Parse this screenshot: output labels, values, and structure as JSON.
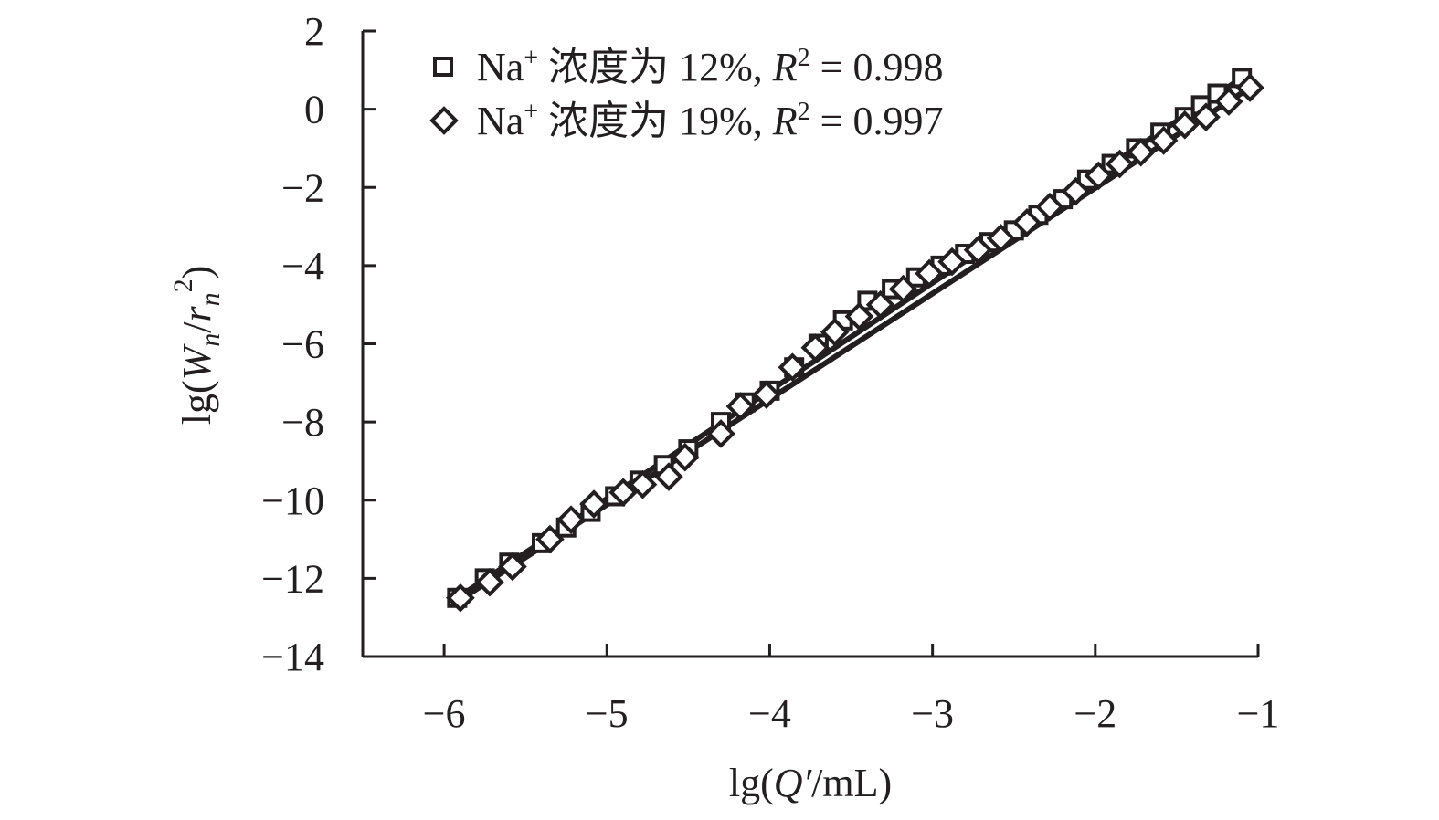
{
  "chart_data": {
    "type": "scatter",
    "title": "",
    "xlabel": {
      "prefix": "lg(",
      "var": "Q′",
      "suffix": "/mL)"
    },
    "ylabel": {
      "prefix": "lg(",
      "var": "W",
      "sub1": "n",
      "slash": "/",
      "var2": "r",
      "sub2": "n",
      "sup": "2",
      "suffix": ")"
    },
    "xlim": [
      -6.5,
      -1
    ],
    "ylim": [
      -14,
      2
    ],
    "xticks": [
      -6,
      -5,
      -4,
      -3,
      -2,
      -1
    ],
    "xtick_labels": [
      "−6",
      "−5",
      "−4",
      "−3",
      "−2",
      "−1"
    ],
    "yticks": [
      2,
      0,
      -2,
      -4,
      -6,
      -8,
      -10,
      -12,
      -14
    ],
    "ytick_labels": [
      "2",
      "0",
      "−2",
      "−4",
      "−6",
      "−8",
      "−10",
      "−12",
      "−14"
    ],
    "grid": false,
    "legend_position": "top-left",
    "series": [
      {
        "name": "Na⁺ 浓度为 12%, R² = 0.998",
        "legend": {
          "prefix": "Na",
          "sup": "+",
          "text": " 浓度为 12%, ",
          "r": "R",
          "r_sup": "2",
          "tail": " = 0.998"
        },
        "marker": "square",
        "fit": {
          "x": [
            -5.92,
            -1.1
          ],
          "y": [
            -12.5,
            0.8
          ]
        },
        "x": [
          -5.92,
          -5.75,
          -5.6,
          -5.4,
          -5.25,
          -5.1,
          -4.95,
          -4.8,
          -4.65,
          -4.5,
          -4.3,
          -4.15,
          -4.0,
          -3.85,
          -3.7,
          -3.55,
          -3.4,
          -3.25,
          -3.1,
          -2.95,
          -2.8,
          -2.65,
          -2.5,
          -2.35,
          -2.2,
          -2.05,
          -1.9,
          -1.75,
          -1.6,
          -1.45,
          -1.35,
          -1.25,
          -1.1
        ],
        "y": [
          -12.5,
          -12.0,
          -11.6,
          -11.1,
          -10.7,
          -10.3,
          -9.9,
          -9.5,
          -9.1,
          -8.7,
          -8.0,
          -7.5,
          -7.2,
          -6.6,
          -6.0,
          -5.4,
          -4.9,
          -4.6,
          -4.3,
          -4.0,
          -3.7,
          -3.4,
          -3.1,
          -2.7,
          -2.3,
          -1.8,
          -1.4,
          -1.0,
          -0.6,
          -0.2,
          0.1,
          0.4,
          0.8
        ]
      },
      {
        "name": "Na⁺ 浓度为 19%, R² = 0.997",
        "legend": {
          "prefix": "Na",
          "sup": "+",
          "text": " 浓度为 19%, ",
          "r": "R",
          "r_sup": "2",
          "tail": " = 0.997"
        },
        "marker": "diamond",
        "fit": {
          "x": [
            -5.92,
            -1.05
          ],
          "y": [
            -12.6,
            0.55
          ]
        },
        "x": [
          -5.9,
          -5.72,
          -5.58,
          -5.35,
          -5.22,
          -5.08,
          -4.9,
          -4.78,
          -4.62,
          -4.52,
          -4.3,
          -4.18,
          -4.02,
          -3.86,
          -3.72,
          -3.6,
          -3.45,
          -3.32,
          -3.18,
          -3.02,
          -2.88,
          -2.72,
          -2.58,
          -2.42,
          -2.28,
          -2.12,
          -1.98,
          -1.85,
          -1.72,
          -1.58,
          -1.45,
          -1.32,
          -1.18,
          -1.05
        ],
        "y": [
          -12.5,
          -12.1,
          -11.7,
          -11.0,
          -10.5,
          -10.1,
          -9.8,
          -9.6,
          -9.4,
          -8.9,
          -8.3,
          -7.6,
          -7.3,
          -6.6,
          -6.1,
          -5.7,
          -5.3,
          -5.0,
          -4.6,
          -4.2,
          -3.9,
          -3.6,
          -3.3,
          -2.9,
          -2.5,
          -2.1,
          -1.7,
          -1.4,
          -1.1,
          -0.8,
          -0.4,
          -0.2,
          0.2,
          0.55
        ]
      }
    ]
  }
}
